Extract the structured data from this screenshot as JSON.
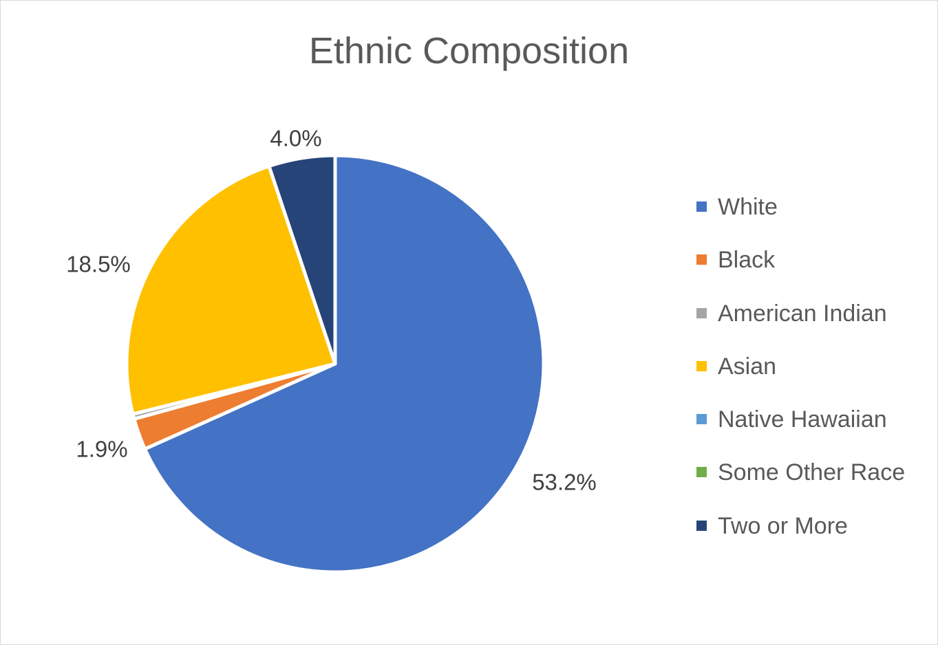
{
  "chart_data": {
    "type": "pie",
    "title": "Ethnic Composition",
    "categories": [
      "White",
      "Black",
      "American Indian",
      "Asian",
      "Native Hawaiian",
      "Some Other Race",
      "Two or More"
    ],
    "values": [
      53.2,
      1.9,
      0.3,
      18.5,
      0.0,
      0.0,
      4.0
    ],
    "value_labels": [
      "53.2%",
      "1.9%",
      "",
      "18.5%",
      "",
      "",
      "4.0%"
    ],
    "colors": [
      "#4472C4",
      "#ED7D31",
      "#A5A5A5",
      "#FFC000",
      "#5B9BD5",
      "#70AD47",
      "#264478"
    ],
    "legend_position": "right",
    "start_angle_deg": 0,
    "direction": "clockwise"
  }
}
